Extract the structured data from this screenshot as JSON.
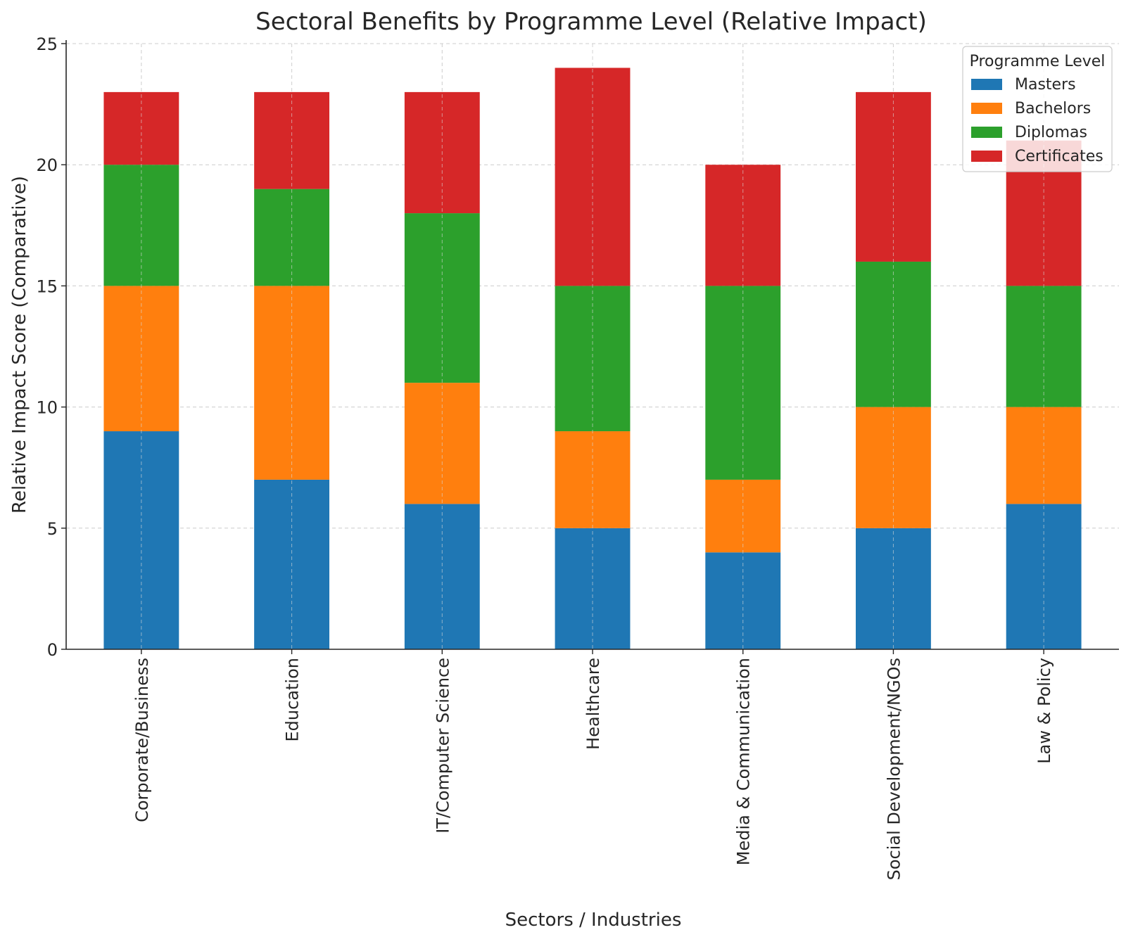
{
  "chart_data": {
    "type": "bar",
    "stacked": true,
    "title": "Sectoral Benefits by Programme Level (Relative Impact)",
    "xlabel": "Sectors / Industries",
    "ylabel": "Relative Impact Score (Comparative)",
    "ylim": [
      0,
      25
    ],
    "yticks": [
      0,
      5,
      10,
      15,
      20,
      25
    ],
    "grid": true,
    "legend_title": "Programme Level",
    "legend_position": "top-right",
    "categories": [
      "Corporate/Business",
      "Education",
      "IT/Computer Science",
      "Healthcare",
      "Media & Communication",
      "Social Development/NGOs",
      "Law & Policy"
    ],
    "series": [
      {
        "name": "Masters",
        "color": "#1f77b4",
        "values": [
          9,
          7,
          6,
          5,
          4,
          5,
          6
        ]
      },
      {
        "name": "Bachelors",
        "color": "#ff7f0e",
        "values": [
          6,
          8,
          5,
          4,
          3,
          5,
          4
        ]
      },
      {
        "name": "Diplomas",
        "color": "#2ca02c",
        "values": [
          5,
          4,
          7,
          6,
          8,
          6,
          5
        ]
      },
      {
        "name": "Certificates",
        "color": "#d62728",
        "values": [
          3,
          4,
          5,
          9,
          5,
          7,
          6
        ]
      }
    ]
  }
}
